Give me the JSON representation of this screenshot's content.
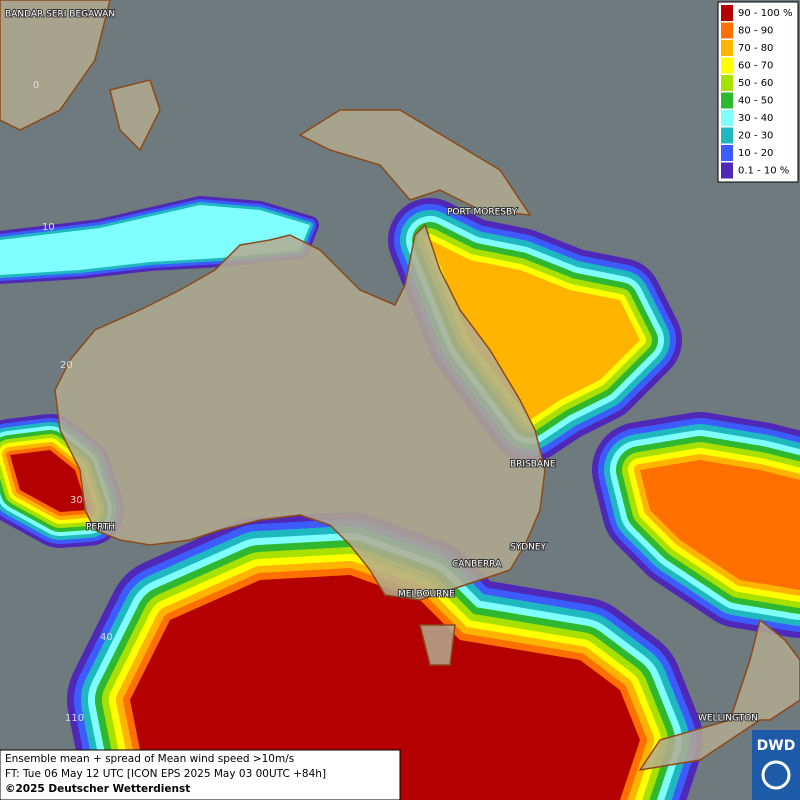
{
  "map": {
    "legend": [
      {
        "label": "90 - 100 %",
        "color": "#b40000"
      },
      {
        "label": "80 - 90",
        "color": "#ff7000"
      },
      {
        "label": "70 - 80",
        "color": "#ffb400"
      },
      {
        "label": "60 - 70",
        "color": "#ffff00"
      },
      {
        "label": "50 - 60",
        "color": "#a8e000"
      },
      {
        "label": "40 - 50",
        "color": "#2fb82f"
      },
      {
        "label": "30 - 40",
        "color": "#80ffff"
      },
      {
        "label": "20 - 30",
        "color": "#20b8c0"
      },
      {
        "label": "10 - 20",
        "color": "#3c5cff"
      },
      {
        "label": "0.1 - 10 %",
        "color": "#5028b8"
      }
    ],
    "cities": [
      "BANDAR SERI BEGAWAN",
      "PORT MORESBY",
      "BRISBANE",
      "PERTH",
      "SYDNEY",
      "CANBERRA",
      "MELBOURNE",
      "WELLINGTON"
    ],
    "grid_labels": [
      "0",
      "10",
      "20",
      "30",
      "40",
      "110"
    ],
    "caption": [
      "Ensemble mean + spread of Mean wind speed >10m/s",
      "FT: Tue 06 May 12 UTC [ICON EPS 2025 May 03 00UTC +84h]",
      "©2025 Deutscher Wetterdienst"
    ],
    "logo": "DWD"
  }
}
